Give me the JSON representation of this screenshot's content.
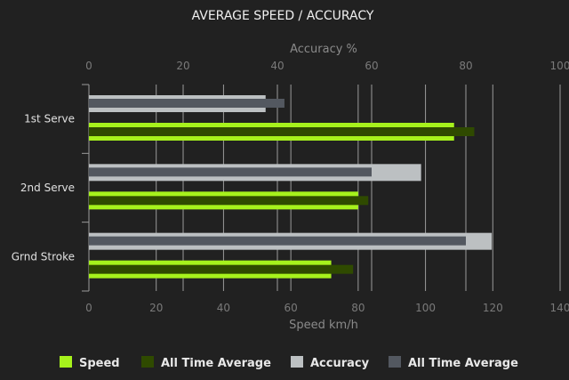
{
  "chart_data": {
    "type": "bar",
    "orientation": "horizontal",
    "title": "AVERAGE SPEED / ACCURACY",
    "categories": [
      "1st Serve",
      "2nd Serve",
      "Grnd Stroke"
    ],
    "top_axis": {
      "label": "Accuracy %",
      "range": [
        0,
        100
      ],
      "ticks": [
        0,
        20,
        40,
        60,
        80,
        100
      ]
    },
    "bottom_axis": {
      "label": "Speed km/h",
      "range": [
        0,
        140
      ],
      "ticks": [
        0,
        20,
        40,
        60,
        80,
        100,
        120,
        140
      ]
    },
    "grid": true,
    "legend_position": "bottom",
    "series": [
      {
        "name": "Speed",
        "axis": "bottom",
        "color": "#a6f21c",
        "values": [
          108.5,
          80,
          72
        ]
      },
      {
        "name": "All Time Average",
        "axis": "bottom",
        "color": "#2f4a00",
        "values": [
          114.5,
          83,
          78.5
        ]
      },
      {
        "name": "Accuracy",
        "axis": "top",
        "color": "#bcc0c2",
        "values": [
          37.5,
          70.5,
          85.5
        ]
      },
      {
        "name": "All Time Average",
        "axis": "top",
        "color": "#535860",
        "values": [
          41.5,
          60,
          80
        ]
      }
    ]
  }
}
